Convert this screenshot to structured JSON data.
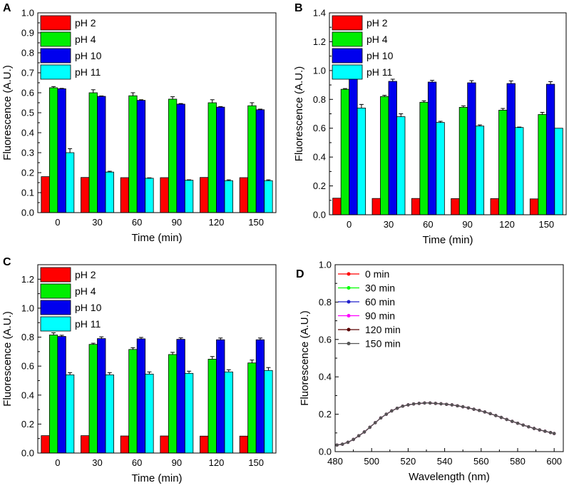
{
  "chart_data": [
    {
      "type": "bar",
      "panel_label": "A",
      "categories": [
        "0",
        "30",
        "60",
        "90",
        "120",
        "150"
      ],
      "xlabel": "Time (min)",
      "ylabel": "Fluorescence (A.U.)",
      "ylim": [
        0,
        1.0
      ],
      "yticks": [
        "0.0",
        "0.1",
        "0.2",
        "0.3",
        "0.4",
        "0.5",
        "0.6",
        "0.7",
        "0.8",
        "0.9",
        "1.0"
      ],
      "legend_position": "top-left",
      "series": [
        {
          "name": "pH 2",
          "color": "#ff0000",
          "values": [
            0.18,
            0.176,
            0.175,
            0.175,
            0.176,
            0.175
          ],
          "errors": [
            0,
            0,
            0,
            0,
            0,
            0
          ]
        },
        {
          "name": "pH 4",
          "color": "#00ee00",
          "values": [
            0.625,
            0.6,
            0.585,
            0.568,
            0.55,
            0.535
          ],
          "errors": [
            0.006,
            0.015,
            0.015,
            0.012,
            0.015,
            0.015
          ]
        },
        {
          "name": "pH 10",
          "color": "#0000ee",
          "values": [
            0.62,
            0.582,
            0.562,
            0.543,
            0.528,
            0.515
          ],
          "errors": [
            0.002,
            0.002,
            0.003,
            0.003,
            0.003,
            0.003
          ]
        },
        {
          "name": "pH 11",
          "color": "#00ffff",
          "values": [
            0.3,
            0.203,
            0.172,
            0.162,
            0.16,
            0.16
          ],
          "errors": [
            0.02,
            0.004,
            0.002,
            0.002,
            0.004,
            0.004
          ]
        }
      ]
    },
    {
      "type": "bar",
      "panel_label": "B",
      "categories": [
        "0",
        "30",
        "60",
        "90",
        "120",
        "150"
      ],
      "xlabel": "Time (min)",
      "ylabel": "Fluorescence (A.U.)",
      "ylim": [
        0,
        1.4
      ],
      "yticks": [
        "0.0",
        "0.2",
        "0.4",
        "0.6",
        "0.8",
        "1.0",
        "1.2",
        "1.4"
      ],
      "legend_position": "top-left",
      "series": [
        {
          "name": "pH 2",
          "color": "#ff0000",
          "values": [
            0.115,
            0.113,
            0.113,
            0.112,
            0.112,
            0.11
          ],
          "errors": [
            0,
            0,
            0,
            0,
            0,
            0
          ]
        },
        {
          "name": "pH 4",
          "color": "#00ee00",
          "values": [
            0.87,
            0.82,
            0.78,
            0.745,
            0.725,
            0.695
          ],
          "errors": [
            0.005,
            0.008,
            0.01,
            0.01,
            0.012,
            0.015
          ]
        },
        {
          "name": "pH 10",
          "color": "#0000ee",
          "values": [
            0.945,
            0.925,
            0.92,
            0.915,
            0.91,
            0.905
          ],
          "errors": [
            0.015,
            0.015,
            0.012,
            0.015,
            0.018,
            0.018
          ]
        },
        {
          "name": "pH 11",
          "color": "#00ffff",
          "values": [
            0.74,
            0.68,
            0.64,
            0.615,
            0.605,
            0.6
          ],
          "errors": [
            0.025,
            0.02,
            0.008,
            0.008,
            0.003,
            0
          ]
        }
      ]
    },
    {
      "type": "bar",
      "panel_label": "C",
      "categories": [
        "0",
        "30",
        "60",
        "90",
        "120",
        "150"
      ],
      "xlabel": "Time (min)",
      "ylabel": "Fluorescence (A.U.)",
      "ylim": [
        0,
        1.3
      ],
      "yticks": [
        "0.0",
        "0.2",
        "0.4",
        "0.6",
        "0.8",
        "1.0",
        "1.2"
      ],
      "legend_position": "top-left",
      "series": [
        {
          "name": "pH 2",
          "color": "#ff0000",
          "values": [
            0.12,
            0.12,
            0.118,
            0.118,
            0.117,
            0.117
          ],
          "errors": [
            0,
            0,
            0,
            0,
            0,
            0
          ]
        },
        {
          "name": "pH 4",
          "color": "#00ee00",
          "values": [
            0.815,
            0.75,
            0.715,
            0.68,
            0.648,
            0.622
          ],
          "errors": [
            0.015,
            0.008,
            0.012,
            0.015,
            0.018,
            0.02
          ]
        },
        {
          "name": "pH 10",
          "color": "#0000ee",
          "values": [
            0.805,
            0.79,
            0.788,
            0.785,
            0.782,
            0.782
          ],
          "errors": [
            0.008,
            0.012,
            0.01,
            0.01,
            0.012,
            0.012
          ]
        },
        {
          "name": "pH 11",
          "color": "#00ffff",
          "values": [
            0.54,
            0.54,
            0.545,
            0.55,
            0.56,
            0.57
          ],
          "errors": [
            0.015,
            0.015,
            0.015,
            0.015,
            0.015,
            0.02
          ]
        }
      ]
    },
    {
      "type": "line",
      "panel_label": "D",
      "xlabel": "Wavelength (nm)",
      "ylabel": "Fluorescence (A.U.)",
      "xlim": [
        480,
        605
      ],
      "ylim": [
        0,
        1.0
      ],
      "xticks": [
        "480",
        "500",
        "520",
        "540",
        "560",
        "580",
        "600"
      ],
      "yticks": [
        "0.0",
        "0.2",
        "0.4",
        "0.6",
        "0.8",
        "1.0"
      ],
      "legend_position": "top-left",
      "x": [
        481,
        484,
        487,
        490,
        493,
        496,
        499,
        502,
        505,
        508,
        511,
        514,
        517,
        520,
        523,
        526,
        529,
        532,
        535,
        538,
        541,
        544,
        547,
        550,
        553,
        556,
        559,
        562,
        565,
        568,
        571,
        574,
        577,
        580,
        583,
        586,
        589,
        592,
        595,
        598,
        600
      ],
      "series": [
        {
          "name": "0 min",
          "color": "#ff0000",
          "values": [
            0.035,
            0.04,
            0.05,
            0.065,
            0.085,
            0.105,
            0.13,
            0.155,
            0.18,
            0.2,
            0.218,
            0.232,
            0.243,
            0.25,
            0.255,
            0.258,
            0.26,
            0.26,
            0.258,
            0.256,
            0.253,
            0.25,
            0.245,
            0.24,
            0.234,
            0.227,
            0.22,
            0.212,
            0.203,
            0.193,
            0.183,
            0.172,
            0.162,
            0.152,
            0.142,
            0.133,
            0.124,
            0.116,
            0.109,
            0.102,
            0.097
          ]
        },
        {
          "name": "30 min",
          "color": "#00ff00",
          "values": [
            0.035,
            0.04,
            0.05,
            0.065,
            0.085,
            0.105,
            0.13,
            0.155,
            0.18,
            0.2,
            0.218,
            0.232,
            0.243,
            0.25,
            0.255,
            0.258,
            0.26,
            0.26,
            0.258,
            0.256,
            0.253,
            0.25,
            0.245,
            0.24,
            0.234,
            0.227,
            0.22,
            0.212,
            0.203,
            0.193,
            0.183,
            0.172,
            0.162,
            0.152,
            0.142,
            0.133,
            0.124,
            0.116,
            0.109,
            0.102,
            0.097
          ]
        },
        {
          "name": "60 min",
          "color": "#2020cc",
          "values": [
            0.035,
            0.04,
            0.05,
            0.065,
            0.085,
            0.105,
            0.13,
            0.155,
            0.18,
            0.2,
            0.218,
            0.232,
            0.243,
            0.25,
            0.255,
            0.258,
            0.26,
            0.26,
            0.258,
            0.256,
            0.253,
            0.25,
            0.245,
            0.24,
            0.234,
            0.227,
            0.22,
            0.212,
            0.203,
            0.193,
            0.183,
            0.172,
            0.162,
            0.152,
            0.142,
            0.133,
            0.124,
            0.116,
            0.109,
            0.102,
            0.097
          ]
        },
        {
          "name": "90 min",
          "color": "#ff00ff",
          "values": [
            0.035,
            0.04,
            0.05,
            0.065,
            0.085,
            0.105,
            0.13,
            0.155,
            0.18,
            0.2,
            0.218,
            0.232,
            0.243,
            0.25,
            0.255,
            0.258,
            0.26,
            0.26,
            0.258,
            0.256,
            0.253,
            0.25,
            0.245,
            0.24,
            0.234,
            0.227,
            0.22,
            0.212,
            0.203,
            0.193,
            0.183,
            0.172,
            0.162,
            0.152,
            0.142,
            0.133,
            0.124,
            0.116,
            0.109,
            0.102,
            0.097
          ]
        },
        {
          "name": "120 min",
          "color": "#5a0000",
          "values": [
            0.035,
            0.04,
            0.05,
            0.065,
            0.085,
            0.105,
            0.13,
            0.155,
            0.18,
            0.2,
            0.218,
            0.232,
            0.243,
            0.25,
            0.255,
            0.258,
            0.26,
            0.26,
            0.258,
            0.256,
            0.253,
            0.25,
            0.245,
            0.24,
            0.234,
            0.227,
            0.22,
            0.212,
            0.203,
            0.193,
            0.183,
            0.172,
            0.162,
            0.152,
            0.142,
            0.133,
            0.124,
            0.116,
            0.109,
            0.102,
            0.097
          ]
        },
        {
          "name": "150 min",
          "color": "#555555",
          "values": [
            0.035,
            0.04,
            0.05,
            0.065,
            0.085,
            0.105,
            0.13,
            0.155,
            0.18,
            0.2,
            0.218,
            0.232,
            0.243,
            0.25,
            0.255,
            0.258,
            0.26,
            0.26,
            0.258,
            0.256,
            0.253,
            0.25,
            0.245,
            0.24,
            0.234,
            0.227,
            0.22,
            0.212,
            0.203,
            0.193,
            0.183,
            0.172,
            0.162,
            0.152,
            0.142,
            0.133,
            0.124,
            0.116,
            0.109,
            0.102,
            0.097
          ]
        }
      ]
    }
  ]
}
